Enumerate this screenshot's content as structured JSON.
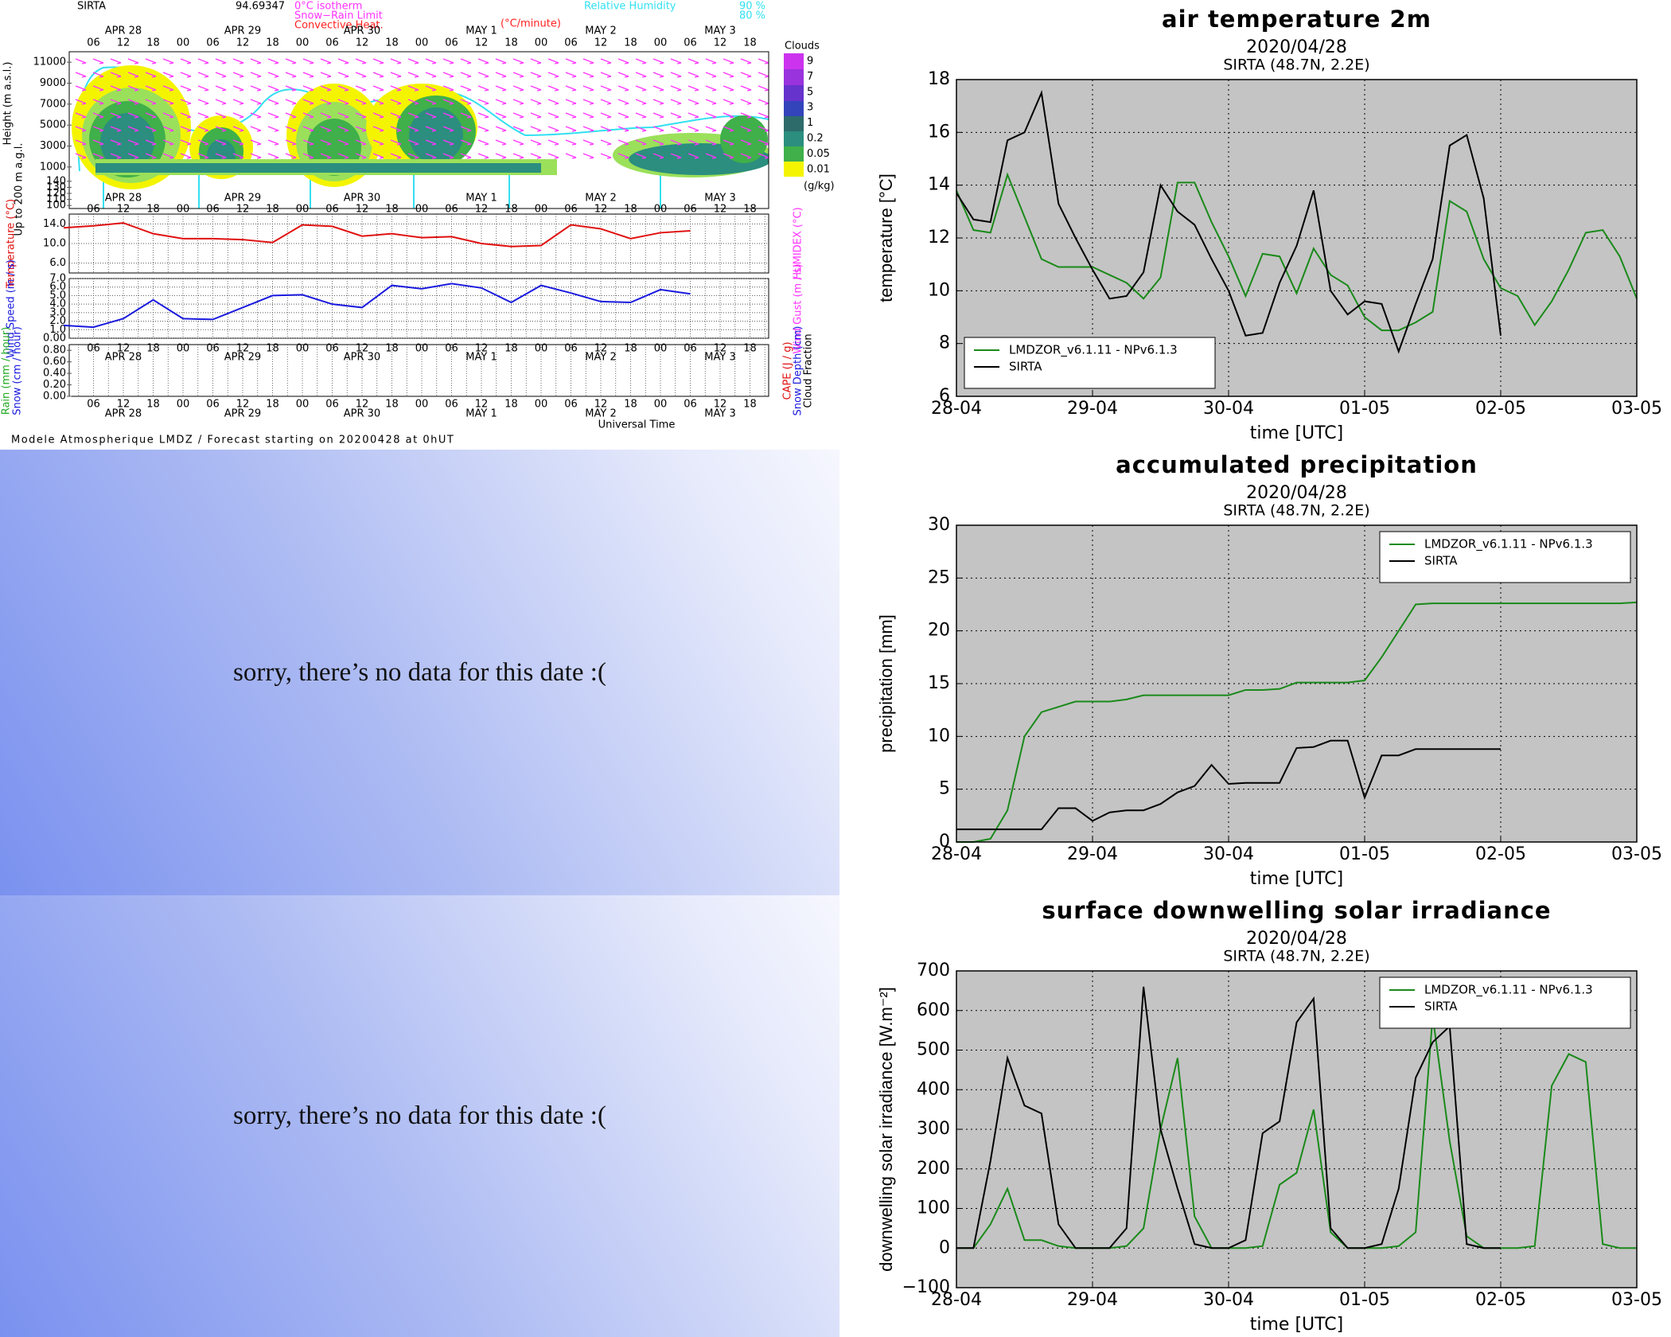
{
  "meteogram": {
    "station": "SIRTA",
    "altitude": "94.69347",
    "legend": [
      "0°C isotherm",
      "Snow−Rain Limit",
      "Convective Heat.",
      "(°C/minute)",
      "Relative Humidity",
      "90 %",
      "80 %"
    ],
    "days": [
      "APR 28",
      "APR 29",
      "APR 30",
      "MAY 1",
      "MAY 2",
      "MAY 3"
    ],
    "hours": [
      "06",
      "12",
      "18",
      "00"
    ],
    "height_label": "Height (m a.s.l.)",
    "height_lim": [
      0,
      12000
    ],
    "height_ticks": [
      11000,
      9000,
      7000,
      5000,
      3000,
      1000
    ],
    "low_label": "Up to 200 m a.g.l.",
    "low_lim": [
      95,
      145
    ],
    "low_ticks": [
      140,
      130,
      120,
      110,
      100
    ],
    "clouds_title": "Clouds",
    "cloud_levels": [
      "9",
      "7",
      "5",
      "3",
      "1",
      "0.2",
      "0.05",
      "0.01"
    ],
    "cloud_unit": "(g/kg)",
    "temp_label": "Temperature (°C)",
    "humidex_label": "HUMIDEX (°C)",
    "temp_lim": [
      4,
      16
    ],
    "temp_ticks": [
      {
        "value": 14,
        "label": "14.0"
      },
      {
        "value": 10,
        "label": "10.0"
      },
      {
        "value": 6,
        "label": "6.0"
      }
    ],
    "temperature": [
      13.2,
      13.6,
      14.2,
      12.0,
      11.0,
      11.0,
      10.8,
      10.2,
      13.8,
      13.5,
      11.5,
      12.0,
      11.2,
      11.4,
      10.0,
      9.4,
      9.6,
      13.8,
      13.0,
      11.0,
      12.2,
      12.6
    ],
    "wind_label": "Wind Speed (m / s)",
    "gust_label": "Wind Gust (m / s)",
    "wind_lim": [
      0,
      7
    ],
    "wind_ticks": [
      {
        "value": 7,
        "label": "7.0"
      },
      {
        "value": 6,
        "label": "6.0"
      },
      {
        "value": 5,
        "label": "5.0"
      },
      {
        "value": 4,
        "label": "4.0"
      },
      {
        "value": 3,
        "label": "3.0"
      },
      {
        "value": 2,
        "label": "2.0"
      },
      {
        "value": 1,
        "label": "1.0"
      },
      {
        "value": 0,
        "label": "0.00"
      }
    ],
    "wind": [
      1.5,
      1.3,
      2.3,
      4.5,
      2.3,
      2.2,
      3.6,
      5.0,
      5.1,
      4.0,
      3.6,
      6.2,
      5.8,
      6.4,
      5.9,
      4.2,
      6.2,
      5.3,
      4.3,
      4.2,
      5.7,
      5.2
    ],
    "rain_label": "Rain (mm / hour)",
    "snow_label": "Snow (cm / hour)",
    "precip_lim": [
      0,
      0.9
    ],
    "precip_ticks": [
      {
        "value": 0.8,
        "label": "0.80"
      },
      {
        "value": 0.6,
        "label": "0.60"
      },
      {
        "value": 0.4,
        "label": "0.40"
      },
      {
        "value": 0.2,
        "label": "0.20"
      },
      {
        "value": 0,
        "label": "0.00"
      }
    ],
    "cape_label": "CAPE (J / g)",
    "snow_depth_label": "Snow Depth (cm)",
    "cloud_fraction_label": "Cloud Fraction",
    "time_label": "Universal Time",
    "footer": "Modele Atmospherique LMDZ / Forecast starting on 20200428 at 0hUT"
  },
  "messages": [
    "sorry, there’s no data for this date  :(",
    "sorry, there’s no data for this date  :("
  ],
  "chart_data": [
    {
      "type": "line",
      "title": "air temperature 2m",
      "subtitle": "2020/04/28",
      "location": "SIRTA (48.7N, 2.2E)",
      "x_label": "time [UTC]",
      "y_label": "temperature [°C]",
      "x": [
        0,
        0.125,
        0.25,
        0.375,
        0.5,
        0.625,
        0.75,
        0.875,
        1,
        1.125,
        1.25,
        1.375,
        1.5,
        1.625,
        1.75,
        1.875,
        2,
        2.125,
        2.25,
        2.375,
        2.5,
        2.625,
        2.75,
        2.875,
        3,
        3.125,
        3.25,
        3.375,
        3.5,
        3.625,
        3.75,
        3.875,
        4,
        4.125,
        4.25,
        4.375,
        4.5,
        4.625,
        4.75,
        4.875,
        5
      ],
      "xlim": [
        0,
        5
      ],
      "xticks": [
        {
          "value": 0,
          "label": "28-04"
        },
        {
          "value": 1,
          "label": "29-04"
        },
        {
          "value": 2,
          "label": "30-04"
        },
        {
          "value": 3,
          "label": "01-05"
        },
        {
          "value": 4,
          "label": "02-05"
        },
        {
          "value": 5,
          "label": "03-05"
        }
      ],
      "ylim": [
        6,
        18
      ],
      "yticks": [
        6,
        8,
        10,
        12,
        14,
        16,
        18
      ],
      "grid": true,
      "legend": "lower left",
      "series": [
        {
          "name": "LMDZOR_v6.1.11 - NPv6.1.3",
          "color": "#1a8a1a",
          "values": [
            13.8,
            12.3,
            12.2,
            14.4,
            12.8,
            11.2,
            10.9,
            10.9,
            10.9,
            10.6,
            10.3,
            9.7,
            10.5,
            14.1,
            14.1,
            12.6,
            11.3,
            9.8,
            11.4,
            11.3,
            9.9,
            11.6,
            10.6,
            10.2,
            9.0,
            8.5,
            8.5,
            8.8,
            9.2,
            13.4,
            13.0,
            11.2,
            10.1,
            9.8,
            8.7,
            9.6,
            10.8,
            12.2,
            12.3,
            11.3,
            9.7
          ]
        },
        {
          "name": "SIRTA",
          "color": "#000000",
          "values": [
            13.7,
            12.7,
            12.6,
            15.7,
            16.0,
            17.5,
            13.3,
            12.0,
            10.8,
            9.7,
            9.8,
            10.7,
            14.0,
            13.0,
            12.5,
            11.2,
            10.0,
            8.3,
            8.4,
            10.3,
            11.7,
            13.8,
            10.0,
            9.1,
            9.6,
            9.5,
            7.7,
            9.5,
            11.2,
            15.5,
            15.9,
            13.5,
            8.3,
            null,
            null,
            null,
            null,
            null,
            null,
            null,
            null
          ]
        }
      ]
    },
    {
      "type": "line",
      "title": "accumulated precipitation",
      "subtitle": "2020/04/28",
      "location": "SIRTA (48.7N, 2.2E)",
      "x_label": "time [UTC]",
      "y_label": "precipitation [mm]",
      "x": [
        0,
        0.125,
        0.25,
        0.375,
        0.5,
        0.625,
        0.75,
        0.875,
        1,
        1.125,
        1.25,
        1.375,
        1.5,
        1.625,
        1.75,
        1.875,
        2,
        2.125,
        2.25,
        2.375,
        2.5,
        2.625,
        2.75,
        2.875,
        3,
        3.125,
        3.25,
        3.375,
        3.5,
        3.625,
        3.75,
        3.875,
        4,
        4.125,
        4.25,
        4.375,
        4.5,
        4.625,
        4.75,
        4.875,
        5
      ],
      "xlim": [
        0,
        5
      ],
      "xticks": [
        {
          "value": 0,
          "label": "28-04"
        },
        {
          "value": 1,
          "label": "29-04"
        },
        {
          "value": 2,
          "label": "30-04"
        },
        {
          "value": 3,
          "label": "01-05"
        },
        {
          "value": 4,
          "label": "02-05"
        },
        {
          "value": 5,
          "label": "03-05"
        }
      ],
      "ylim": [
        0,
        30
      ],
      "yticks": [
        0,
        5,
        10,
        15,
        20,
        25,
        30
      ],
      "grid": true,
      "legend": "upper right",
      "series": [
        {
          "name": "LMDZOR_v6.1.11 - NPv6.1.3",
          "color": "#1a8a1a",
          "values": [
            0,
            0,
            0.3,
            3.0,
            10.0,
            12.3,
            12.8,
            13.3,
            13.3,
            13.3,
            13.5,
            13.9,
            13.9,
            13.9,
            13.9,
            13.9,
            13.9,
            14.4,
            14.4,
            14.5,
            15.1,
            15.1,
            15.1,
            15.1,
            15.3,
            17.5,
            20.0,
            22.5,
            22.6,
            22.6,
            22.6,
            22.6,
            22.6,
            22.6,
            22.6,
            22.6,
            22.6,
            22.6,
            22.6,
            22.6,
            22.7
          ]
        },
        {
          "name": "SIRTA",
          "color": "#000000",
          "values": [
            1.2,
            1.2,
            1.2,
            1.2,
            1.2,
            1.2,
            3.2,
            3.2,
            2.0,
            2.8,
            3.0,
            3.0,
            3.6,
            4.7,
            5.3,
            7.3,
            5.5,
            5.6,
            5.6,
            5.6,
            8.9,
            9.0,
            9.6,
            9.6,
            4.2,
            8.2,
            8.2,
            8.8,
            8.8,
            8.8,
            8.8,
            8.8,
            8.8,
            null,
            null,
            null,
            null,
            null,
            null,
            null,
            null
          ]
        }
      ]
    },
    {
      "type": "line",
      "title": "surface downwelling solar irradiance",
      "subtitle": "2020/04/28",
      "location": "SIRTA (48.7N, 2.2E)",
      "x_label": "time [UTC]",
      "y_label": "downwelling solar irradiance [W.m⁻²]",
      "x": [
        0,
        0.125,
        0.25,
        0.375,
        0.5,
        0.625,
        0.75,
        0.875,
        1,
        1.125,
        1.25,
        1.375,
        1.5,
        1.625,
        1.75,
        1.875,
        2,
        2.125,
        2.25,
        2.375,
        2.5,
        2.625,
        2.75,
        2.875,
        3,
        3.125,
        3.25,
        3.375,
        3.5,
        3.625,
        3.75,
        3.875,
        4,
        4.125,
        4.25,
        4.375,
        4.5,
        4.625,
        4.75,
        4.875,
        5
      ],
      "xlim": [
        0,
        5
      ],
      "xticks": [
        {
          "value": 0,
          "label": "28-04"
        },
        {
          "value": 1,
          "label": "29-04"
        },
        {
          "value": 2,
          "label": "30-04"
        },
        {
          "value": 3,
          "label": "01-05"
        },
        {
          "value": 4,
          "label": "02-05"
        },
        {
          "value": 5,
          "label": "03-05"
        }
      ],
      "ylim": [
        -100,
        700
      ],
      "yticks": [
        {
          "value": -100,
          "label": "−100"
        },
        0,
        100,
        200,
        300,
        400,
        500,
        600,
        700
      ],
      "grid": true,
      "legend": "upper right",
      "series": [
        {
          "name": "LMDZOR_v6.1.11 - NPv6.1.3",
          "color": "#1a8a1a",
          "values": [
            0,
            0,
            60,
            150,
            20,
            20,
            5,
            0,
            0,
            0,
            5,
            50,
            300,
            480,
            80,
            0,
            0,
            0,
            5,
            160,
            190,
            350,
            40,
            0,
            0,
            0,
            5,
            40,
            585,
            270,
            30,
            0,
            0,
            0,
            5,
            410,
            490,
            470,
            10,
            0,
            0
          ]
        },
        {
          "name": "SIRTA",
          "color": "#000000",
          "values": [
            0,
            0,
            220,
            480,
            360,
            340,
            60,
            0,
            0,
            0,
            50,
            660,
            300,
            150,
            10,
            0,
            0,
            20,
            290,
            320,
            570,
            630,
            50,
            0,
            0,
            10,
            150,
            430,
            520,
            560,
            10,
            0,
            0,
            null,
            null,
            null,
            null,
            null,
            null,
            null,
            null
          ]
        }
      ]
    }
  ]
}
